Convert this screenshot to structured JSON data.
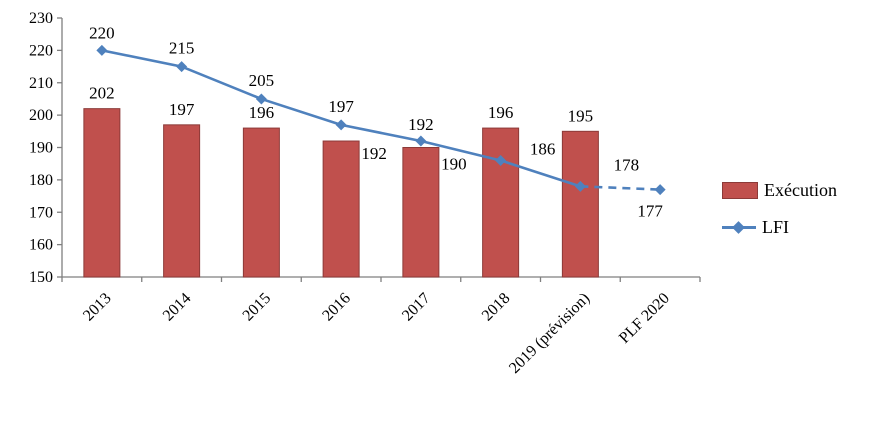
{
  "chart_data": {
    "type": "bar",
    "combo": "bar+line",
    "title": "",
    "xlabel": "",
    "ylabel": "",
    "categories": [
      "2013",
      "2014",
      "2015",
      "2016",
      "2017",
      "2018",
      "2019 (prévision)",
      "PLF 2020"
    ],
    "series": [
      {
        "name": "Exécution",
        "type": "bar",
        "color": "#C0504D",
        "border_color": "#8C3A38",
        "values": [
          202,
          197,
          196,
          192,
          190,
          196,
          195,
          null
        ]
      },
      {
        "name": "LFI",
        "type": "line",
        "color": "#4F81BD",
        "marker": "diamond",
        "values": [
          220,
          215,
          205,
          197,
          192,
          186,
          178,
          177
        ],
        "dashed_from_index": 6
      }
    ],
    "ylim": [
      150,
      230
    ],
    "ytick_step": 10,
    "grid": false,
    "legend_position": "right",
    "axis_color": "#7F7F7F"
  }
}
